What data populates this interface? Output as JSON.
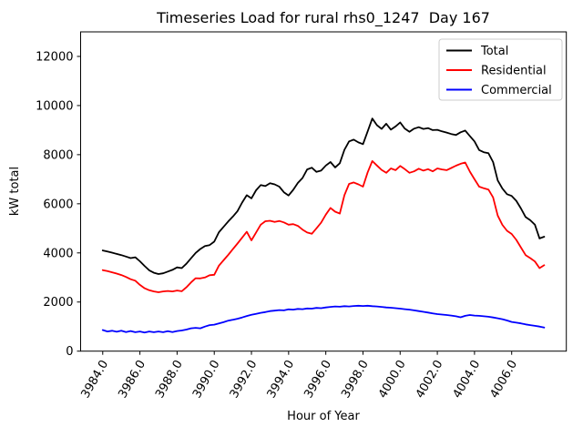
{
  "chart_data": {
    "type": "line",
    "title": "Timeseries Load for rural rhs0_1247  Day 167",
    "xlabel": "Hour of Year",
    "ylabel": "kW total",
    "xlim": [
      3982.81,
      4008.94
    ],
    "ylim": [
      0,
      13000
    ],
    "grid": false,
    "legend_position": "upper right",
    "x_start": 3984.0,
    "x_step": 0.25,
    "n_points": 96,
    "xticks": [
      {
        "v": 3984,
        "label": "3984.0"
      },
      {
        "v": 3986,
        "label": "3986.0"
      },
      {
        "v": 3988,
        "label": "3988.0"
      },
      {
        "v": 3990,
        "label": "3990.0"
      },
      {
        "v": 3992,
        "label": "3992.0"
      },
      {
        "v": 3994,
        "label": "3994.0"
      },
      {
        "v": 3996,
        "label": "3996.0"
      },
      {
        "v": 3998,
        "label": "3998.0"
      },
      {
        "v": 4000,
        "label": "4000.0"
      },
      {
        "v": 4002,
        "label": "4002.0"
      },
      {
        "v": 4004,
        "label": "4004.0"
      },
      {
        "v": 4006,
        "label": "4006.0"
      }
    ],
    "yticks": [
      {
        "v": 0,
        "label": "0"
      },
      {
        "v": 2000,
        "label": "2000"
      },
      {
        "v": 4000,
        "label": "4000"
      },
      {
        "v": 6000,
        "label": "6000"
      },
      {
        "v": 8000,
        "label": "8000"
      },
      {
        "v": 10000,
        "label": "10000"
      },
      {
        "v": 12000,
        "label": "12000"
      }
    ],
    "series": [
      {
        "name": "Total",
        "color": "#000000",
        "values": [
          4100,
          4060,
          4010,
          3960,
          3910,
          3850,
          3790,
          3820,
          3660,
          3470,
          3290,
          3190,
          3140,
          3170,
          3240,
          3310,
          3410,
          3380,
          3560,
          3780,
          4000,
          4160,
          4280,
          4320,
          4460,
          4840,
          5060,
          5280,
          5480,
          5700,
          6050,
          6350,
          6220,
          6550,
          6760,
          6720,
          6840,
          6790,
          6700,
          6470,
          6340,
          6570,
          6850,
          7050,
          7400,
          7470,
          7300,
          7350,
          7560,
          7700,
          7480,
          7650,
          8200,
          8540,
          8610,
          8500,
          8430,
          8950,
          9470,
          9200,
          9050,
          9260,
          9020,
          9150,
          9310,
          9060,
          8930,
          9060,
          9120,
          9050,
          9080,
          9000,
          9010,
          8950,
          8900,
          8840,
          8800,
          8910,
          8980,
          8760,
          8540,
          8190,
          8100,
          8060,
          7700,
          6950,
          6620,
          6390,
          6320,
          6120,
          5810,
          5460,
          5330,
          5150,
          4590,
          4660
        ]
      },
      {
        "name": "Residential",
        "color": "#ff0000",
        "values": [
          3300,
          3260,
          3210,
          3160,
          3100,
          3020,
          2930,
          2870,
          2700,
          2560,
          2480,
          2430,
          2400,
          2430,
          2450,
          2430,
          2470,
          2440,
          2600,
          2800,
          2970,
          2960,
          3000,
          3090,
          3110,
          3480,
          3700,
          3920,
          4150,
          4380,
          4620,
          4860,
          4510,
          4830,
          5150,
          5290,
          5310,
          5260,
          5300,
          5240,
          5150,
          5170,
          5100,
          4950,
          4830,
          4780,
          5000,
          5230,
          5560,
          5830,
          5680,
          5600,
          6350,
          6810,
          6870,
          6790,
          6700,
          7280,
          7740,
          7560,
          7380,
          7260,
          7440,
          7370,
          7540,
          7410,
          7260,
          7320,
          7430,
          7350,
          7410,
          7320,
          7440,
          7400,
          7370,
          7460,
          7550,
          7630,
          7680,
          7310,
          7000,
          6700,
          6630,
          6580,
          6260,
          5520,
          5140,
          4900,
          4770,
          4530,
          4220,
          3910,
          3790,
          3650,
          3380,
          3500
        ]
      },
      {
        "name": "Commercial",
        "color": "#0000ff",
        "values": [
          860,
          800,
          830,
          790,
          830,
          780,
          820,
          770,
          800,
          760,
          800,
          770,
          800,
          770,
          810,
          780,
          820,
          840,
          880,
          930,
          950,
          930,
          1000,
          1060,
          1080,
          1130,
          1180,
          1240,
          1280,
          1320,
          1370,
          1430,
          1480,
          1520,
          1560,
          1590,
          1630,
          1650,
          1670,
          1660,
          1700,
          1690,
          1720,
          1710,
          1740,
          1730,
          1760,
          1750,
          1780,
          1800,
          1820,
          1810,
          1830,
          1820,
          1840,
          1850,
          1840,
          1850,
          1830,
          1820,
          1800,
          1780,
          1770,
          1750,
          1730,
          1710,
          1690,
          1660,
          1630,
          1600,
          1570,
          1540,
          1510,
          1490,
          1470,
          1450,
          1420,
          1380,
          1440,
          1470,
          1450,
          1440,
          1420,
          1400,
          1370,
          1340,
          1300,
          1250,
          1190,
          1160,
          1130,
          1090,
          1060,
          1030,
          1000,
          960
        ]
      }
    ]
  }
}
